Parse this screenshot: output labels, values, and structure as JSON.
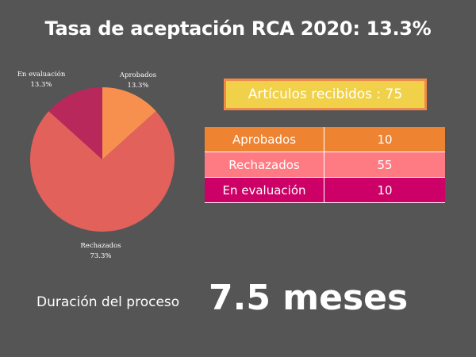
{
  "title": "Tasa de aceptación RCA 2020: 13.3%",
  "colors": {
    "background": "#555555",
    "aprobados": "#f7904e",
    "rechazados": "#e2615b",
    "en_evaluacion": "#b8285a",
    "received_fill": "#f2d14a",
    "received_border": "#f08a4b",
    "row_aprobados": "#ee8332",
    "row_rechazados": "#ff7b83",
    "row_en_evaluacion": "#cc0066"
  },
  "chart_data": {
    "type": "pie",
    "slices": [
      {
        "label": "Aprobados",
        "value": 10,
        "pct_label": "13.3%",
        "color": "#f7904e"
      },
      {
        "label": "Rechazados",
        "value": 55,
        "pct_label": "73.3%",
        "color": "#e2615b"
      },
      {
        "label": "En evaluación",
        "value": 10,
        "pct_label": "13.3%",
        "color": "#b8285a"
      }
    ]
  },
  "received": {
    "text": "Artículos recibidos : 75"
  },
  "table": {
    "rows": [
      {
        "label": "Aprobados",
        "value": "10",
        "color": "#ee8332"
      },
      {
        "label": "Rechazados",
        "value": "55",
        "color": "#ff7b83"
      },
      {
        "label": "En evaluación",
        "value": "10",
        "color": "#cc0066"
      }
    ]
  },
  "duration": {
    "label": "Duración del proceso",
    "value": "7.5 meses"
  }
}
